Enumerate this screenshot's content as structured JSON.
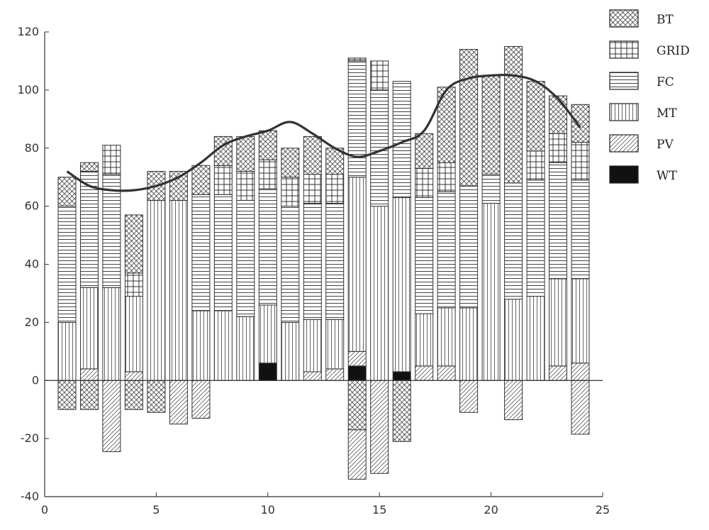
{
  "chart_data": {
    "type": "bar",
    "stacked": true,
    "x": [
      1,
      2,
      3,
      4,
      5,
      6,
      7,
      8,
      9,
      10,
      11,
      12,
      13,
      14,
      15,
      16,
      17,
      18,
      19,
      20,
      21,
      22,
      23,
      24
    ],
    "xlim": [
      0,
      25
    ],
    "ylim": [
      -40,
      120
    ],
    "x_ticks": [
      "0",
      "5",
      "10",
      "15",
      "20",
      "25"
    ],
    "y_ticks": [
      "120",
      "100",
      "80",
      "60",
      "40",
      "20",
      "0",
      "-20",
      "-40"
    ],
    "grid": false,
    "legend_position": "top-right",
    "series": [
      {
        "name": "BT",
        "pattern": "crosshatch",
        "values": [
          10,
          3,
          0,
          20,
          10,
          10,
          10,
          10,
          12,
          10,
          10,
          13,
          9,
          0,
          0,
          0,
          12,
          26,
          47,
          34,
          47,
          24,
          13,
          13
        ]
      },
      {
        "name": "GRID",
        "pattern": "grid",
        "values": [
          0,
          0,
          10,
          8,
          0,
          0,
          0,
          10,
          10,
          10,
          10,
          10,
          10,
          1,
          10,
          0,
          10,
          10,
          0,
          0,
          0,
          10,
          10,
          13
        ]
      },
      {
        "name": "FC",
        "pattern": "horizontal-lines",
        "values": [
          40,
          40,
          39,
          0,
          0,
          0,
          40,
          40,
          40,
          40,
          40,
          40,
          40,
          40,
          40,
          40,
          40,
          40,
          42,
          10,
          40,
          40,
          40,
          34
        ]
      },
      {
        "name": "MT",
        "pattern": "vertical-lines",
        "values": [
          20,
          28,
          32,
          26,
          62,
          62,
          24,
          24,
          22,
          20,
          20,
          18,
          17,
          60,
          60,
          60,
          18,
          20,
          25,
          61,
          28,
          29,
          30,
          29
        ]
      },
      {
        "name": "PV",
        "pattern": "diagonal",
        "values": [
          0,
          4,
          0,
          3,
          0,
          0,
          0,
          0,
          0,
          0,
          0,
          3,
          4,
          5,
          0,
          0,
          5,
          5,
          0,
          0,
          0,
          0,
          5,
          6
        ]
      },
      {
        "name": "WT",
        "pattern": "solid",
        "values": [
          0,
          0,
          0,
          0,
          0,
          0,
          0,
          0,
          0,
          6,
          0,
          0,
          0,
          5,
          0,
          3,
          0,
          0,
          0,
          0,
          0,
          0,
          0,
          0
        ]
      }
    ],
    "negative_series": [
      {
        "name": "BT",
        "pattern": "crosshatch",
        "values": [
          -10,
          -10,
          0,
          -10,
          -11,
          0,
          0,
          0,
          0,
          0,
          0,
          0,
          0,
          -17,
          0,
          -21,
          0,
          0,
          0,
          0,
          0,
          0,
          0,
          0
        ]
      },
      {
        "name": "PV",
        "pattern": "diagonal",
        "values": [
          0,
          0,
          -24.5,
          0,
          0,
          -15,
          -13,
          0,
          0,
          0,
          0,
          0,
          0,
          -17,
          -32,
          0,
          0,
          0,
          -11,
          0,
          -13.5,
          0,
          0,
          -18.5
        ]
      }
    ],
    "load_curve": {
      "type": "line",
      "x": [
        1,
        2,
        3,
        4,
        5,
        6,
        7,
        8,
        9,
        10,
        11,
        12,
        13,
        14,
        15,
        16,
        17,
        18,
        19,
        20,
        21,
        22,
        23,
        24
      ],
      "y": [
        72,
        67,
        65.5,
        65.5,
        67,
        70,
        75,
        81,
        84,
        86,
        89,
        85,
        80,
        77,
        79,
        82,
        86,
        100,
        104,
        105,
        105,
        103,
        97,
        87
      ]
    }
  }
}
